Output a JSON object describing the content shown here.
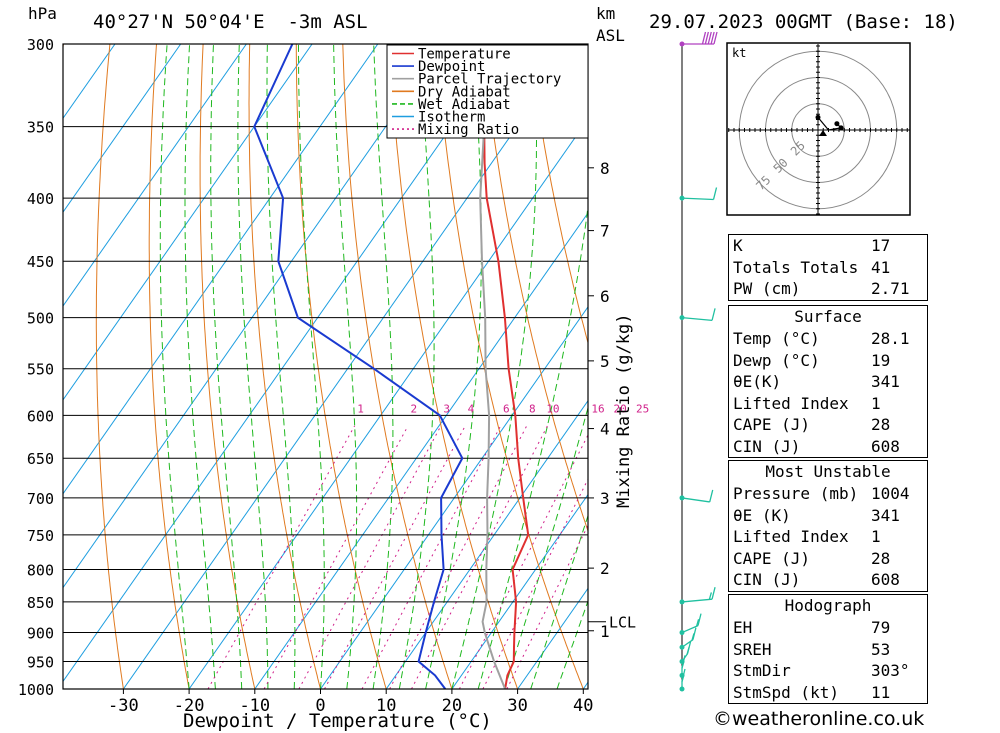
{
  "header": {
    "p_unit": "hPa",
    "location": "40°27'N 50°04'E  -3m ASL",
    "km_unit": "km",
    "km_sub": "ASL",
    "datetime": "29.07.2023 00GMT (Base: 18)"
  },
  "colors": {
    "temperature": "#e03030",
    "dewpoint": "#1a3ad0",
    "parcel": "#a0a0a0",
    "dry_adiabat": "#e07a20",
    "wet_adiabat": "#1fb81f",
    "isotherm": "#1e9ee0",
    "mixing_ratio": "#d0208a",
    "wind": "#20c0a0"
  },
  "legend": [
    "Temperature",
    "Dewpoint",
    "Parcel Trajectory",
    "Dry Adiabat",
    "Wet Adiabat",
    "Isotherm",
    "Mixing Ratio"
  ],
  "chart_data": {
    "type": "line",
    "title": "40°27'N 50°04'E  -3m ASL",
    "xlabel": "Dewpoint / Temperature (°C)",
    "ylabel": "hPa",
    "y2label": "Mixing Ratio (g/kg)",
    "xlim": [
      -40,
      40
    ],
    "ylim": [
      1000,
      300
    ],
    "x_ticks": [
      -30,
      -20,
      -10,
      0,
      10,
      20,
      30,
      40
    ],
    "pressure_levels": [
      300,
      350,
      400,
      450,
      500,
      550,
      600,
      650,
      700,
      750,
      800,
      850,
      900,
      950,
      1000
    ],
    "km_ticks": [
      {
        "label": "8",
        "p": 378
      },
      {
        "label": "7",
        "p": 425
      },
      {
        "label": "6",
        "p": 480
      },
      {
        "label": "5",
        "p": 542
      },
      {
        "label": "4",
        "p": 615
      },
      {
        "label": "3",
        "p": 700
      },
      {
        "label": "2",
        "p": 798
      },
      {
        "label": "1",
        "p": 897
      }
    ],
    "lcl": {
      "label": "LCL",
      "p": 882
    },
    "mixing_ratio_labels": [
      "1",
      "2",
      "3",
      "4",
      "6",
      "8",
      "10",
      "16",
      "20",
      "25"
    ],
    "mixing_ratio_values": [
      1,
      2,
      3,
      4,
      6,
      8,
      10,
      16,
      20,
      25
    ],
    "series": [
      {
        "name": "Temperature",
        "p": [
          1000,
          975,
          950,
          925,
          900,
          850,
          800,
          750,
          700,
          650,
          600,
          550,
          500,
          450,
          400,
          375,
          350,
          330
        ],
        "t": [
          28.1,
          27,
          26.5,
          25,
          23.5,
          20.5,
          16.5,
          15.2,
          10.5,
          5.5,
          0.5,
          -5.5,
          -11.5,
          -18.5,
          -27,
          -31,
          -35,
          -39
        ]
      },
      {
        "name": "Dewpoint",
        "p": [
          1000,
          975,
          950,
          900,
          850,
          800,
          750,
          700,
          650,
          600,
          550,
          500,
          450,
          400,
          350,
          300
        ],
        "t": [
          19,
          16,
          12,
          10,
          8,
          6,
          2,
          -2,
          -3,
          -11,
          -26,
          -43,
          -52,
          -58,
          -70,
          -73
        ]
      },
      {
        "name": "Parcel Trajectory",
        "p": [
          1000,
          950,
          900,
          882,
          850,
          800,
          750,
          700,
          650,
          600,
          550,
          500,
          450,
          400,
          350,
          320
        ],
        "t": [
          28.1,
          23.5,
          19,
          17.5,
          16,
          12.5,
          9,
          5,
          1,
          -3.5,
          -9,
          -14.5,
          -21,
          -28,
          -35,
          -40
        ]
      }
    ],
    "wind_barbs": [
      {
        "p": 1000,
        "speed_kt": 5,
        "dir_deg": 180
      },
      {
        "p": 975,
        "speed_kt": 5,
        "dir_deg": 180
      },
      {
        "p": 950,
        "speed_kt": 5,
        "dir_deg": 190
      },
      {
        "p": 925,
        "speed_kt": 5,
        "dir_deg": 200
      },
      {
        "p": 900,
        "speed_kt": 5,
        "dir_deg": 210
      },
      {
        "p": 850,
        "speed_kt": 5,
        "dir_deg": 250
      },
      {
        "p": 700,
        "speed_kt": 10,
        "dir_deg": 300
      },
      {
        "p": 500,
        "speed_kt": 10,
        "dir_deg": 290
      },
      {
        "p": 400,
        "speed_kt": 10,
        "dir_deg": 280
      },
      {
        "p": 300,
        "speed_kt": 50,
        "dir_deg": 270
      }
    ]
  },
  "hodograph": {
    "unit": "kt",
    "ring_labels": [
      "25",
      "50",
      "75"
    ],
    "ring_values": [
      25,
      50,
      75
    ],
    "points_u": [
      0,
      5,
      11,
      9
    ],
    "points_v": [
      6,
      0,
      1,
      3
    ]
  },
  "indices": {
    "rows": [
      {
        "label": "K",
        "value": "17"
      },
      {
        "label": "Totals Totals",
        "value": "41"
      },
      {
        "label": "PW (cm)",
        "value": "2.71"
      }
    ]
  },
  "surface": {
    "title": "Surface",
    "rows": [
      {
        "label": "Temp (°C)",
        "value": "28.1"
      },
      {
        "label": "Dewp (°C)",
        "value": "19"
      },
      {
        "label": "θE(K)",
        "value": "341"
      },
      {
        "label": "Lifted Index",
        "value": "1"
      },
      {
        "label": "CAPE (J)",
        "value": "28"
      },
      {
        "label": "CIN (J)",
        "value": "608"
      }
    ]
  },
  "most_unstable": {
    "title": "Most Unstable",
    "rows": [
      {
        "label": "Pressure (mb)",
        "value": "1004"
      },
      {
        "label": "θE (K)",
        "value": "341"
      },
      {
        "label": "Lifted Index",
        "value": "1"
      },
      {
        "label": "CAPE (J)",
        "value": "28"
      },
      {
        "label": "CIN (J)",
        "value": "608"
      }
    ]
  },
  "hodograph_table": {
    "title": "Hodograph",
    "rows": [
      {
        "label": "EH",
        "value": "79"
      },
      {
        "label": "SREH",
        "value": "53"
      },
      {
        "label": "StmDir",
        "value": "303°"
      },
      {
        "label": "StmSpd (kt)",
        "value": "11"
      }
    ]
  },
  "credit": "©weatheronline.co.uk"
}
